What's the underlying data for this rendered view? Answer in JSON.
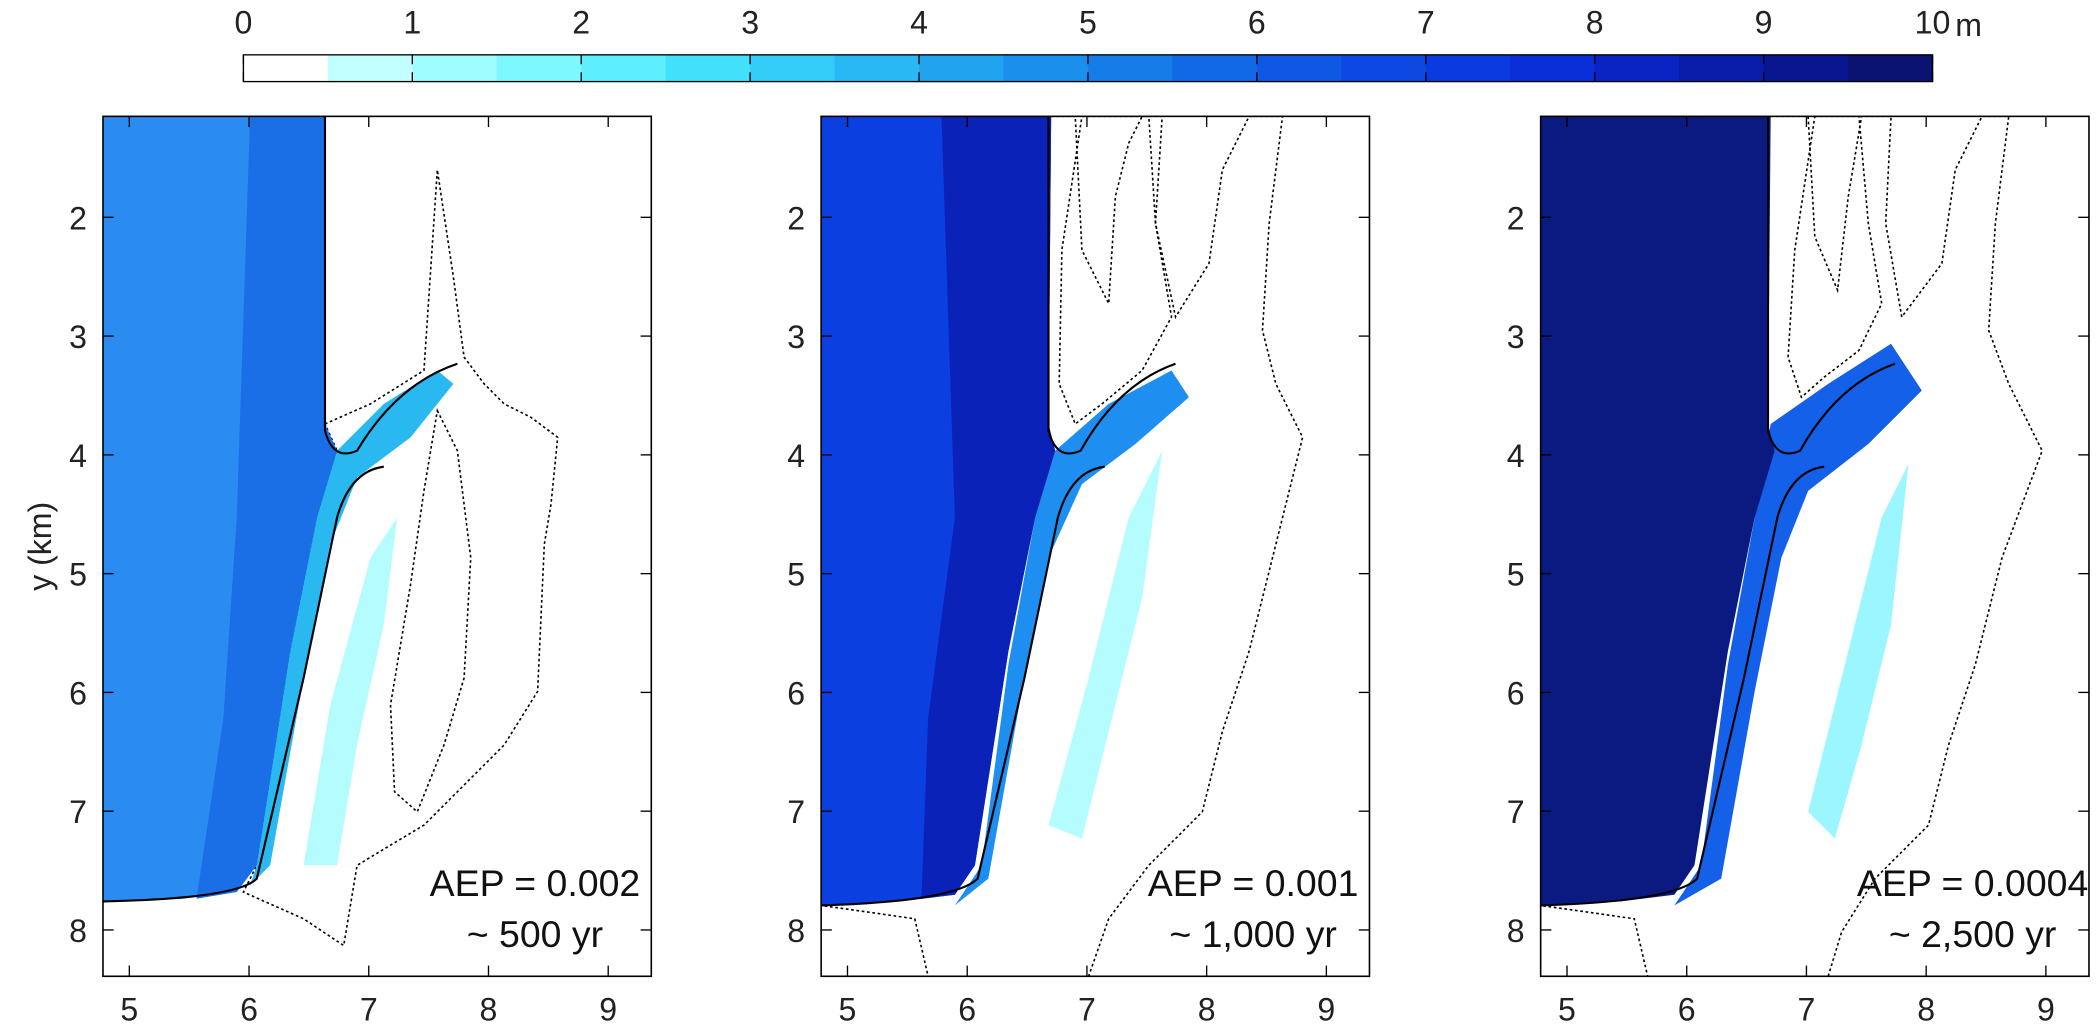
{
  "colorbar": {
    "lim": [
      0,
      10
    ],
    "ticks": [
      0,
      1,
      2,
      3,
      4,
      5,
      6,
      7,
      8,
      9,
      10
    ],
    "unit": "m",
    "colors": [
      "#ffffff",
      "#c2ffff",
      "#a0fdff",
      "#7ef8ff",
      "#5eefff",
      "#42e0fb",
      "#33cdf8",
      "#2ab8f4",
      "#22a3f0",
      "#1b8fec",
      "#167ce8",
      "#1269e6",
      "#0f58e4",
      "#0d48e2",
      "#0b3ae0",
      "#0a2ed8",
      "#0a24c4",
      "#0a1caa",
      "#0a1690",
      "#0a1272"
    ]
  },
  "chart_data": [
    {
      "type": "heatmap",
      "ylabel": "y (km)",
      "xlim": [
        4.78,
        9.36
      ],
      "ylim": [
        1.15,
        8.39
      ],
      "y_inverted": true,
      "xticks": [
        5,
        6,
        7,
        8,
        9
      ],
      "yticks": [
        2,
        3,
        4,
        5,
        6,
        7,
        8
      ],
      "annotations": [
        "AEP = 0.002",
        "~ 500 yr"
      ]
    },
    {
      "type": "heatmap",
      "xlim": [
        4.78,
        9.36
      ],
      "ylim": [
        1.15,
        8.39
      ],
      "y_inverted": true,
      "xticks": [
        5,
        6,
        7,
        8,
        9
      ],
      "yticks": [
        2,
        3,
        4,
        5,
        6,
        7,
        8
      ],
      "annotations": [
        "AEP = 0.001",
        "~ 1,000 yr"
      ]
    },
    {
      "type": "heatmap",
      "xlim": [
        4.78,
        9.36
      ],
      "ylim": [
        1.15,
        8.39
      ],
      "y_inverted": true,
      "xticks": [
        5,
        6,
        7,
        8,
        9
      ],
      "yticks": [
        2,
        3,
        4,
        5,
        6,
        7,
        8
      ],
      "annotations": [
        "AEP = 0.0004",
        "~ 2,500 yr"
      ]
    }
  ]
}
